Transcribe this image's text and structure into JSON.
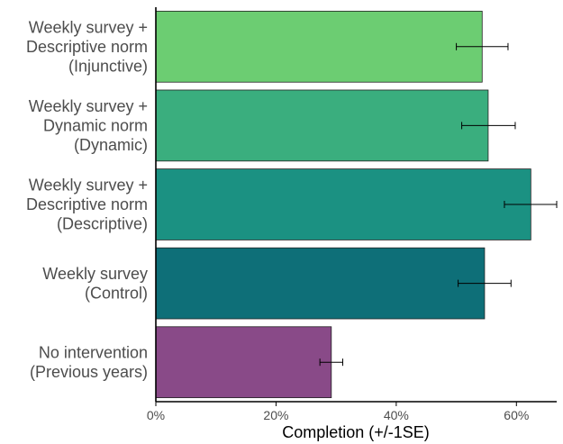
{
  "chart_data": {
    "type": "bar",
    "orientation": "horizontal",
    "categories": [
      [
        "Weekly survey +",
        "Descriptive norm",
        "(Injunctive)"
      ],
      [
        "Weekly survey +",
        "Dynamic norm",
        "(Dynamic)"
      ],
      [
        "Weekly survey +",
        "Descriptive norm",
        "(Descriptive)"
      ],
      [
        "Weekly survey",
        "(Control)"
      ],
      [
        "No intervention",
        "(Previous years)"
      ]
    ],
    "values": [
      0.543,
      0.553,
      0.624,
      0.547,
      0.292
    ],
    "error_low": [
      0.5,
      0.509,
      0.58,
      0.503,
      0.273
    ],
    "error_high": [
      0.586,
      0.598,
      0.667,
      0.591,
      0.311
    ],
    "colors": [
      "#6ccd72",
      "#3aae7e",
      "#1b9182",
      "#0e6f78",
      "#894a88"
    ],
    "xlabel": "Completion (+/-1SE)",
    "ylabel": "",
    "xlim": [
      0,
      0.667
    ],
    "xticks": [
      0,
      0.2,
      0.4,
      0.6
    ],
    "xtick_labels": [
      "0%",
      "20%",
      "40%",
      "60%"
    ],
    "grid": false,
    "legend": "none"
  }
}
